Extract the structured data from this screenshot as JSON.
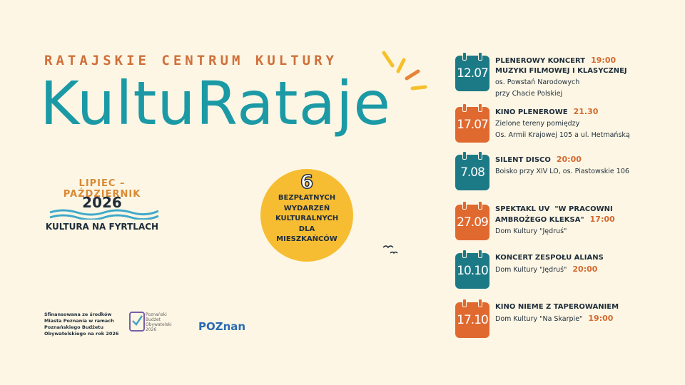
{
  "header": {
    "subtitle": "RATAJSKIE CENTRUM KULTURY",
    "title": "KultuRataje"
  },
  "season": {
    "months": "LIPIEC – PAŹDZIERNIK",
    "year": "2026",
    "tagline": "KULTURA NA FYRTLACH"
  },
  "badge": {
    "number": "6",
    "lines": [
      "BEZPŁATNYCH",
      "WYDARZEŃ",
      "KULTURALNYCH",
      "DLA",
      "MIESZKAŃCÓW"
    ]
  },
  "events": [
    {
      "date": "12.07",
      "color": "#1c7a86",
      "title": [
        "PLENEROWY KONCERT",
        "MUZYKI FILMOWEJ I KLASYCZNEJ"
      ],
      "time": "19:00",
      "place": [
        "os. Powstań Narodowych",
        "przy Chacie Polskiej"
      ]
    },
    {
      "date": "17.07",
      "color": "#e0692f",
      "title": [
        "KINO PLENEROWE"
      ],
      "time": "21.30",
      "place": [
        "Zielone tereny pomiędzy",
        "Os. Armii Krajowej 105 a ul. Hetmańską"
      ]
    },
    {
      "date": "7.08",
      "color": "#1c7a86",
      "title": [
        "SILENT DISCO"
      ],
      "time": "20:00",
      "place": [
        "Boisko przy XIV LO, os. Piastowskie 106"
      ]
    },
    {
      "date": "27.09",
      "color": "#e0692f",
      "title": [
        "SPEKTAKL UV  \"W PRACOWNI",
        "AMBROŻEGO KLEKSA\""
      ],
      "time": "17:00",
      "place": [
        "Dom Kultury \"Jędruś\""
      ]
    },
    {
      "date": "10.10",
      "color": "#1c7a86",
      "title": [
        "KONCERT ZESPOŁU ALIANS"
      ],
      "time": "20:00",
      "place": [
        "Dom Kultury \"Jędruś\""
      ]
    },
    {
      "date": "17.10",
      "color": "#e0692f",
      "title": [
        "KINO NIEME Z TAPEROWANIEM"
      ],
      "time": "19:00",
      "place": [
        "Dom Kultury \"Na Skarpie\""
      ]
    }
  ],
  "footer": {
    "funding": [
      "Sfinansowana ze środków",
      "Miasta Poznania w ramach",
      "Poznańskiego Budżetu",
      "Obywatelskiego na rok 2026"
    ],
    "pbo_logo": [
      "Poznański",
      "Budżet",
      "Obywatelski",
      "2026"
    ],
    "city_logo": "POZnan"
  }
}
